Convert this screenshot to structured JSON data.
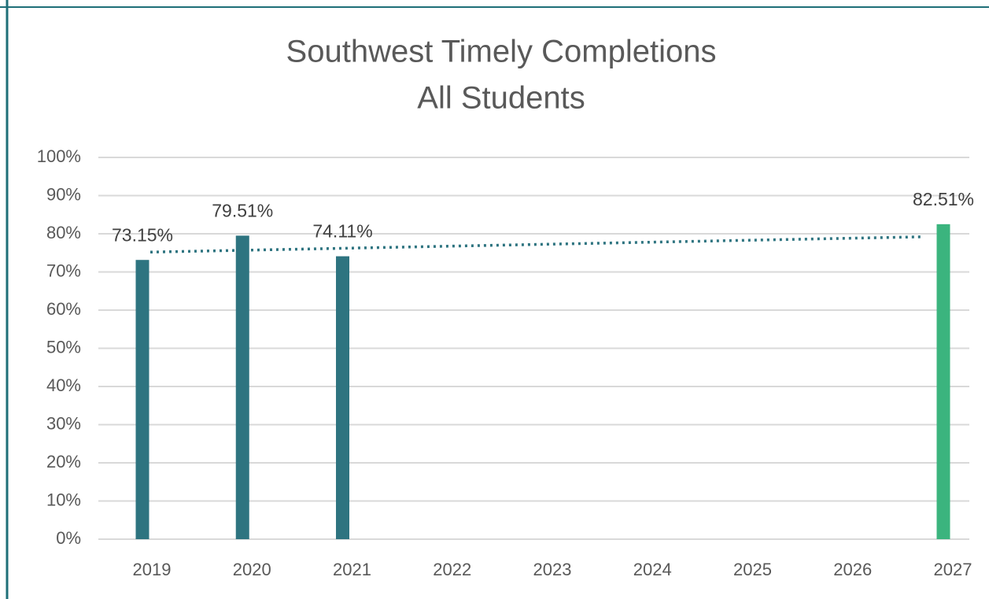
{
  "chart_data": {
    "type": "bar",
    "title": "Southwest Timely Completions",
    "subtitle": "All Students",
    "categories": [
      "2019",
      "2020",
      "2021",
      "2022",
      "2023",
      "2024",
      "2025",
      "2026",
      "2027"
    ],
    "values": [
      73.15,
      79.51,
      74.11,
      null,
      null,
      null,
      null,
      null,
      82.51
    ],
    "value_labels": [
      "73.15%",
      "79.51%",
      "74.11%",
      null,
      null,
      null,
      null,
      null,
      "82.51%"
    ],
    "colors": [
      "#2e7480",
      "#2e7480",
      "#2e7480",
      null,
      null,
      null,
      null,
      null,
      "#3bb47e"
    ],
    "trendline": {
      "color": "#2e7480",
      "values": [
        75.2,
        79.2
      ]
    },
    "ylim": [
      0,
      100
    ],
    "yticks": [
      {
        "value": 0,
        "label": "0%"
      },
      {
        "value": 10,
        "label": "10%"
      },
      {
        "value": 20,
        "label": "20%"
      },
      {
        "value": 30,
        "label": "30%"
      },
      {
        "value": 40,
        "label": "40%"
      },
      {
        "value": 50,
        "label": "50%"
      },
      {
        "value": 60,
        "label": "60%"
      },
      {
        "value": 70,
        "label": "70%"
      },
      {
        "value": 80,
        "label": "80%"
      },
      {
        "value": 90,
        "label": "90%"
      },
      {
        "value": 100,
        "label": "100%"
      }
    ],
    "grid": true
  }
}
